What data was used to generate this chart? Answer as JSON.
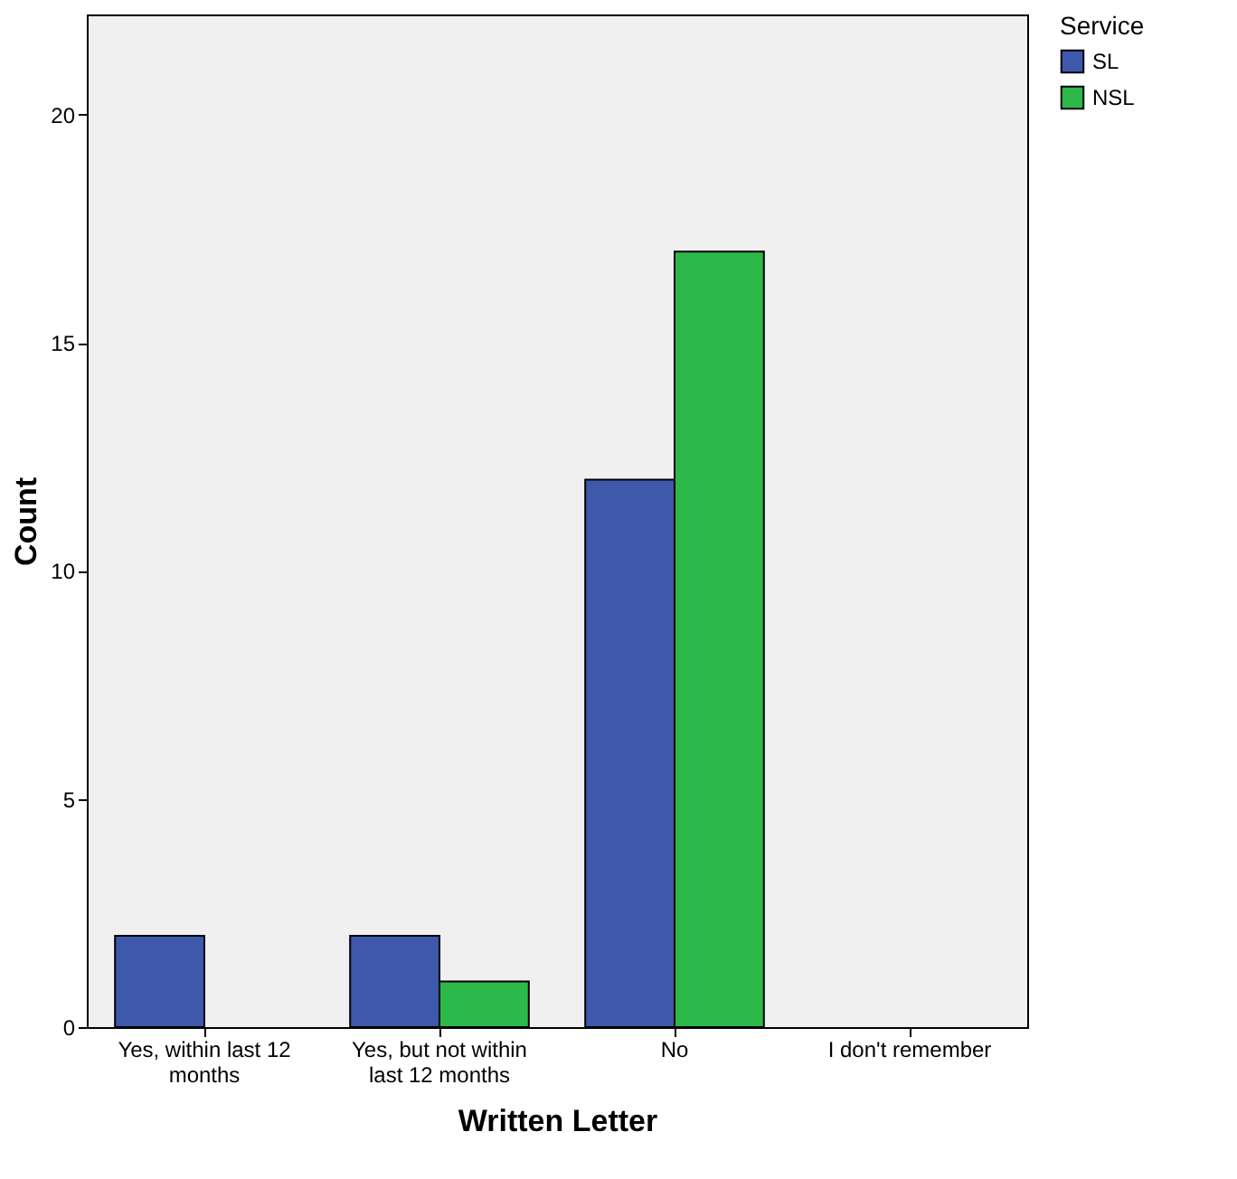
{
  "chart_data": {
    "type": "bar",
    "xlabel": "Written Letter",
    "ylabel": "Count",
    "legend_title": "Service",
    "legend": "top right",
    "grid": false,
    "categories": [
      "Yes, within last 12 months",
      "Yes, but not within last 12 months",
      "No",
      "I don't remember"
    ],
    "series": [
      {
        "name": "SL",
        "color": "#3e58ac",
        "values": [
          2,
          2,
          12,
          null
        ]
      },
      {
        "name": "NSL",
        "color": "#2db84a",
        "values": [
          null,
          1,
          17,
          null
        ]
      }
    ],
    "ylim": [
      0,
      22.2
    ],
    "yticks": [
      0,
      5,
      10,
      15,
      20
    ]
  }
}
